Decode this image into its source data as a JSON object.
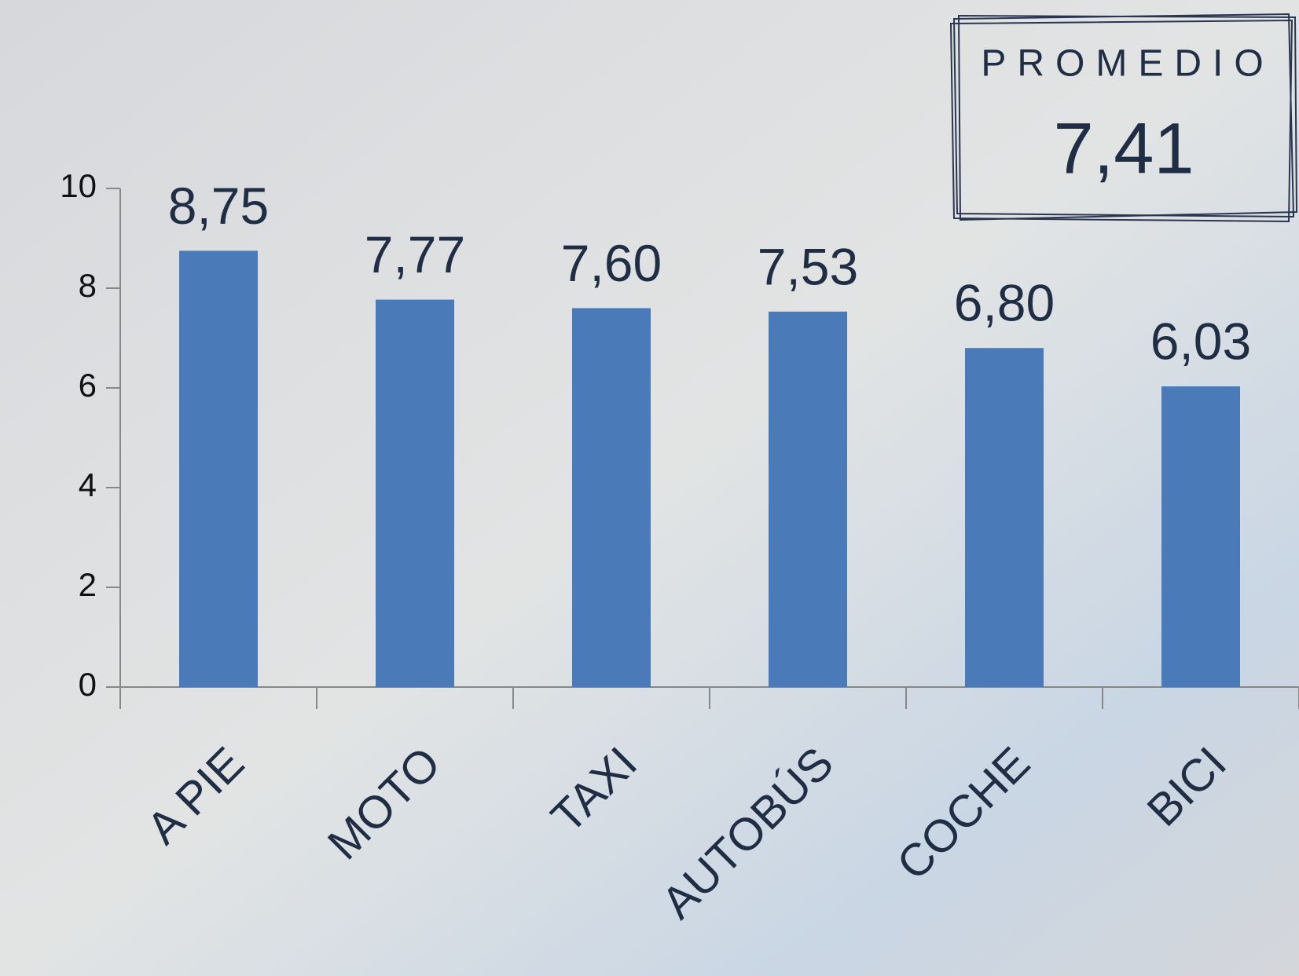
{
  "chart_data": {
    "type": "bar",
    "categories": [
      "A PIE",
      "MOTO",
      "TAXI",
      "AUTOBÚS",
      "COCHE",
      "BICI"
    ],
    "values": [
      8.75,
      7.77,
      7.6,
      7.53,
      6.8,
      6.03
    ],
    "value_labels": [
      "8,75",
      "7,77",
      "7,60",
      "7,53",
      "6,80",
      "6,03"
    ],
    "color": "#4a7ab8",
    "ylim": [
      0,
      10
    ],
    "yticks": [
      0,
      2,
      4,
      6,
      8,
      10
    ],
    "annotation": {
      "title": "PROMEDIO",
      "text": "7,41"
    }
  }
}
